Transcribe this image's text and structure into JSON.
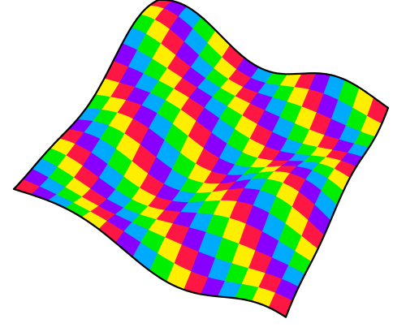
{
  "surface": {
    "grid_rows": 16,
    "grid_cols": 16,
    "palette": [
      "#ff1744",
      "#ffee00",
      "#00ee00",
      "#00aaff",
      "#8800ff"
    ],
    "border_color": "#000000"
  }
}
